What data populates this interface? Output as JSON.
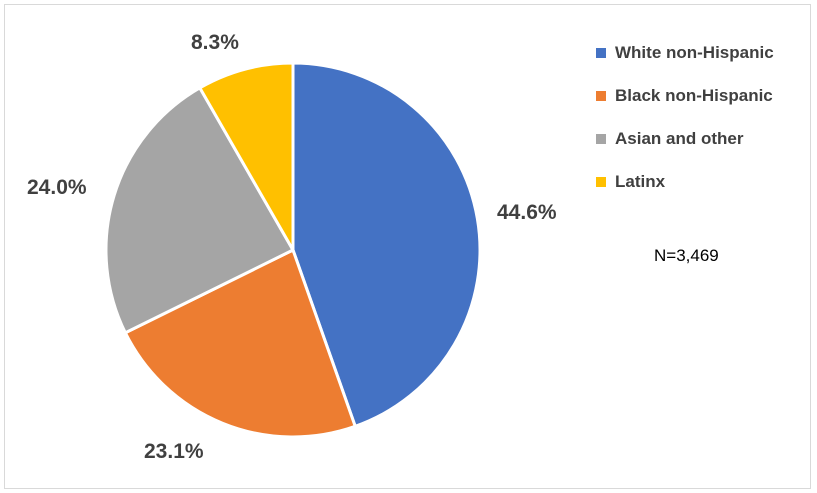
{
  "chart_data": {
    "type": "pie",
    "categories": [
      "White non-Hispanic",
      "Black non-Hispanic",
      "Asian and other",
      "Latinx"
    ],
    "values": [
      44.6,
      23.1,
      24.0,
      8.3
    ],
    "labels": [
      "44.6%",
      "23.1%",
      "24.0%",
      "8.3%"
    ],
    "colors": [
      "#4472c4",
      "#ed7d31",
      "#a5a5a5",
      "#ffc000"
    ],
    "legend": "right",
    "annotation": "N=3,469"
  }
}
